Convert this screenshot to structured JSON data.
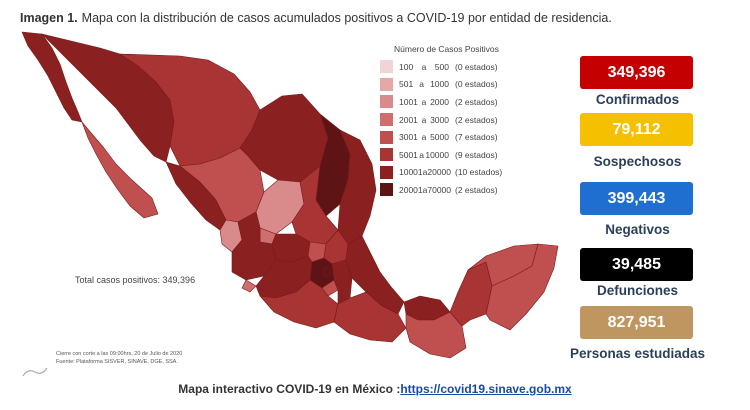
{
  "title": {
    "prefix": "Imagen 1.",
    "text": "Mapa con la distribución de casos acumulados positivos a COVID-19 por entidad de residencia."
  },
  "legend": {
    "title": "Número de Casos Positivos",
    "items": [
      {
        "from": "100",
        "to": "500",
        "count": "(0 estados)",
        "color": "#f1d4d4"
      },
      {
        "from": "501",
        "to": "1000",
        "count": "(0 estados)",
        "color": "#e4a8a8"
      },
      {
        "from": "1001",
        "to": "2000",
        "count": "(2 estados)",
        "color": "#d98a8a"
      },
      {
        "from": "2001",
        "to": "3000",
        "count": "(2 estados)",
        "color": "#cf6e6e"
      },
      {
        "from": "3001",
        "to": "5000",
        "count": "(7 estados)",
        "color": "#c05050"
      },
      {
        "from": "5001",
        "to": "10000",
        "count": "(9 estados)",
        "color": "#a83434"
      },
      {
        "from": "10001",
        "to": "20000",
        "count": "(10 estados)",
        "color": "#8a2020"
      },
      {
        "from": "20001",
        "to": "70000",
        "count": "(2 estados)",
        "color": "#5e1414"
      }
    ]
  },
  "total": "Total casos positivos: 349,396",
  "source": {
    "line1": "Cierre con corte a las 09:00hrs, 20 de Julio de 2020",
    "line2": "Fuente: Plataforma SISVER, SINAVE, DGE, SSA."
  },
  "stats": [
    {
      "value": "349,396",
      "label": "Confirmados",
      "bg": "#c40000",
      "fg": "#ffffff"
    },
    {
      "value": "79,112",
      "label": "Sospechosos",
      "bg": "#f5c000",
      "fg": "#ffffff"
    },
    {
      "value": "399,443",
      "label": "Negativos",
      "bg": "#1f6fd0",
      "fg": "#ffffff"
    },
    {
      "value": "39,485",
      "label": "Defunciones",
      "bg": "#000000",
      "fg": "#ffffff"
    },
    {
      "value": "827,951",
      "label": "Personas estudiadas",
      "bg": "#bf9560",
      "fg": "#ffffff"
    }
  ],
  "footer": {
    "text": "Mapa interactivo COVID-19 en México :",
    "link": "https://covid19.sinave.gob.mx"
  }
}
